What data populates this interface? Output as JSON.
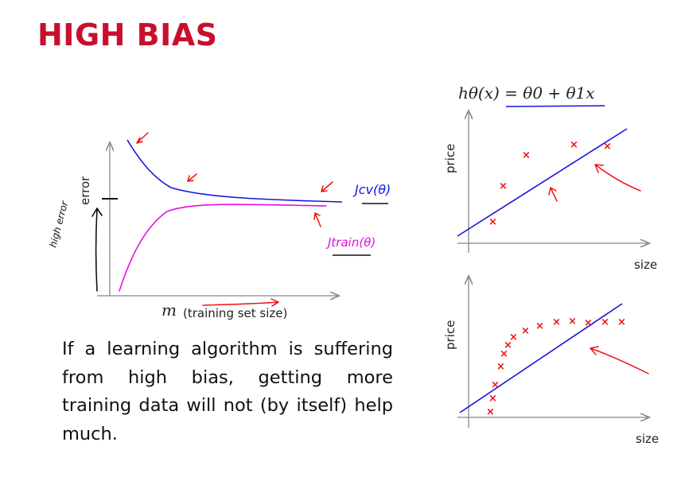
{
  "title": "HIGH BIAS",
  "caption": "If a learning algorithm is suffering from high bias, getting more training data will not (by itself) help much.",
  "colors": {
    "title": "#c8102e",
    "curve_cv": "#1515dd",
    "curve_train": "#e010e0",
    "annotation": "#ee1111"
  },
  "learning_curve": {
    "y_label": "error",
    "x_var": "m",
    "x_label": "(training set size)",
    "cv_label": "Jcv(θ)",
    "train_label": "Jtrain(θ)",
    "note": "high error"
  },
  "hypothesis": "hθ(x) = θ0 + θ1x",
  "fit_plots": {
    "top": {
      "x_label": "size",
      "y_label": "price"
    },
    "bottom": {
      "x_label": "size",
      "y_label": "price"
    }
  }
}
